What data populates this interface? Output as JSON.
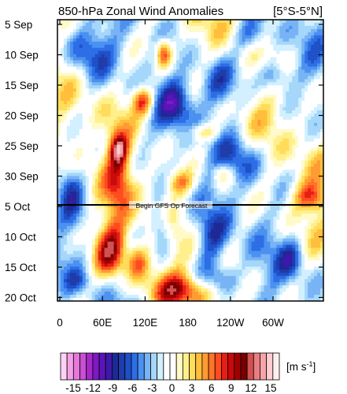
{
  "chart_data": {
    "type": "heatmap",
    "title": "850-hPa Zonal Wind Anomalies",
    "region_label": "[5°S-5°N]",
    "y_ticks": [
      "5 Sep",
      "10 Sep",
      "15 Sep",
      "20 Sep",
      "25 Sep",
      "30 Sep",
      "5 Oct",
      "10 Oct",
      "15 Oct",
      "20 Oct"
    ],
    "x_ticks": [
      "0",
      "60E",
      "120E",
      "180",
      "120W",
      "60W"
    ],
    "y_range": [
      "5 Sep",
      "21 Oct"
    ],
    "x_range": [
      "0",
      "360"
    ],
    "forecast_line_date": "5 Oct",
    "forecast_annotation": "Begin GFS Op Forecast",
    "colorbar": {
      "labels": [
        "-15",
        "-12",
        "-9",
        "-6",
        "-3",
        "0",
        "3",
        "6",
        "9",
        "12",
        "15"
      ],
      "units_label": "[m s",
      "units_exp": "-1",
      "units_close": "]",
      "colors": [
        "#ffd2f5",
        "#f5a0e6",
        "#e678dc",
        "#c850d2",
        "#a528c8",
        "#7d19c3",
        "#5a14b9",
        "#3c19aa",
        "#1e2896",
        "#1e3caa",
        "#1e50c8",
        "#2d6ee6",
        "#4b91f0",
        "#78b4f5",
        "#a5d7fa",
        "#d2f0ff",
        "#ffffff",
        "#ffffff",
        "#fffac8",
        "#fff08c",
        "#ffdc5a",
        "#ffbe3c",
        "#ff9b32",
        "#ff7328",
        "#ff4b1e",
        "#e61e14",
        "#c80a0a",
        "#a00000",
        "#780000",
        "#d25050",
        "#eb7d82",
        "#f5a5aa",
        "#ffcdd2",
        "#fff0f0"
      ]
    }
  }
}
